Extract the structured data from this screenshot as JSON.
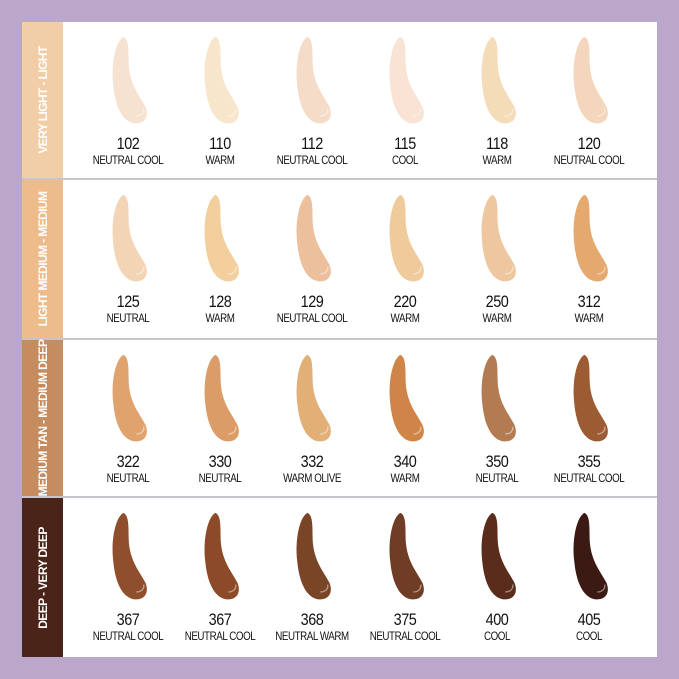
{
  "background_color": "#baa7ca",
  "groups": [
    {
      "label": "VERY LIGHT - LIGHT",
      "color": "#f1cea7",
      "shades": [
        {
          "number": "102",
          "undertone": "NEUTRAL COOL",
          "color": "#f6e2d0"
        },
        {
          "number": "110",
          "undertone": "WARM",
          "color": "#f7e5cc"
        },
        {
          "number": "112",
          "undertone": "NEUTRAL COOL",
          "color": "#f5dcc8"
        },
        {
          "number": "115",
          "undertone": "COOL",
          "color": "#f8e3d4"
        },
        {
          "number": "118",
          "undertone": "WARM",
          "color": "#f5dcb9"
        },
        {
          "number": "120",
          "undertone": "NEUTRAL COOL",
          "color": "#f4d6bc"
        }
      ]
    },
    {
      "label": "LIGHT MEDIUM - MEDIUM",
      "color": "#eebb8b",
      "shades": [
        {
          "number": "125",
          "undertone": "NEUTRAL",
          "color": "#f3d5b5"
        },
        {
          "number": "128",
          "undertone": "WARM",
          "color": "#f2cf9c"
        },
        {
          "number": "129",
          "undertone": "NEUTRAL COOL",
          "color": "#ecc09d"
        },
        {
          "number": "220",
          "undertone": "WARM",
          "color": "#efcb9c"
        },
        {
          "number": "250",
          "undertone": "WARM",
          "color": "#eec7a0"
        },
        {
          "number": "312",
          "undertone": "WARM",
          "color": "#e5a86e"
        }
      ]
    },
    {
      "label": "MEDIUM TAN - MEDIUM DEEP",
      "color": "#c48c5f",
      "shades": [
        {
          "number": "322",
          "undertone": "NEUTRAL",
          "color": "#e1a36e"
        },
        {
          "number": "330",
          "undertone": "NEUTRAL",
          "color": "#dc9c68"
        },
        {
          "number": "332",
          "undertone": "WARM OLIVE",
          "color": "#e2b076"
        },
        {
          "number": "340",
          "undertone": "WARM",
          "color": "#cf8547"
        },
        {
          "number": "350",
          "undertone": "NEUTRAL",
          "color": "#b27b52"
        },
        {
          "number": "355",
          "undertone": "NEUTRAL COOL",
          "color": "#9c5b32"
        }
      ]
    },
    {
      "label": "DEEP - VERY DEEP",
      "color": "#4b2419",
      "shades": [
        {
          "number": "367",
          "undertone": "NEUTRAL COOL",
          "color": "#8f4e2c"
        },
        {
          "number": "367",
          "undertone": "NEUTRAL COOL",
          "color": "#8c4a28"
        },
        {
          "number": "368",
          "undertone": "NEUTRAL WARM",
          "color": "#7a4427"
        },
        {
          "number": "375",
          "undertone": "NEUTRAL COOL",
          "color": "#6f3c26"
        },
        {
          "number": "400",
          "undertone": "COOL",
          "color": "#5a2c1c"
        },
        {
          "number": "405",
          "undertone": "COOL",
          "color": "#3b1a14"
        }
      ]
    }
  ]
}
